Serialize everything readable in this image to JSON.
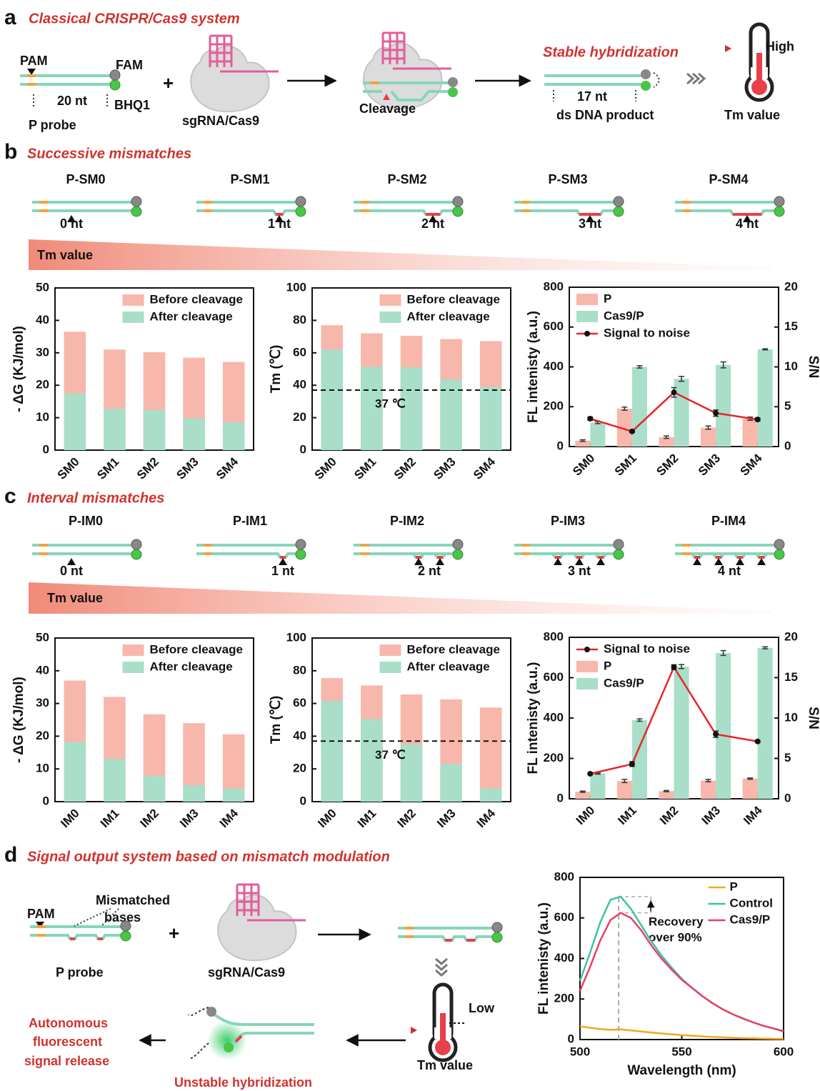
{
  "panel_a": {
    "letter": "a",
    "title": "Classical CRISPR/Cas9 system",
    "pam": "PAM",
    "fam": "FAM",
    "length": "20 nt",
    "quencher": "BHQ1",
    "probe": "P probe",
    "plus": "+",
    "complex": "sgRNA/Cas9",
    "cleavage": "Cleavage",
    "hybridization": "Stable hybridization",
    "product_length": "17 nt",
    "product": "ds DNA product",
    "level": "High",
    "thermometer": "Tm value"
  },
  "panel_b": {
    "letter": "b",
    "title": "Successive mismatches",
    "gradient": "Tm value",
    "probes": [
      {
        "name": "P-SM0",
        "mismatch": "0 nt"
      },
      {
        "name": "P-SM1",
        "mismatch": "1 nt"
      },
      {
        "name": "P-SM2",
        "mismatch": "2 nt"
      },
      {
        "name": "P-SM3",
        "mismatch": "3 nt"
      },
      {
        "name": "P-SM4",
        "mismatch": "4 nt"
      }
    ]
  },
  "panel_c": {
    "letter": "c",
    "title": "Interval mismatches",
    "gradient": "Tm value",
    "probes": [
      {
        "name": "P-IM0",
        "mismatch": "0 nt"
      },
      {
        "name": "P-IM1",
        "mismatch": "1 nt"
      },
      {
        "name": "P-IM2",
        "mismatch": "2 nt"
      },
      {
        "name": "P-IM3",
        "mismatch": "3 nt"
      },
      {
        "name": "P-IM4",
        "mismatch": "4 nt"
      }
    ]
  },
  "panel_d": {
    "letter": "d",
    "title": "Signal output system based on mismatch modulation",
    "pam": "PAM",
    "mismatch": [
      "Mismatched",
      "bases"
    ],
    "probe": "P probe",
    "plus": "+",
    "complex": "sgRNA/Cas9",
    "level": "Low",
    "thermometer": "Tm value",
    "release": [
      "Autonomous",
      "fluorescent",
      "signal release"
    ],
    "hybridization": "Unstable hybridization"
  },
  "chart_data": [
    {
      "type": "bar",
      "barmode": "overlay",
      "ylabel": "- ΔG (KJ/mol)",
      "categories": [
        "SM0",
        "SM1",
        "SM2",
        "SM3",
        "SM4"
      ],
      "series": [
        {
          "name": "Before cleavage",
          "color": "#f7b7ab",
          "values": [
            36.5,
            31,
            30.2,
            28.5,
            27.2
          ]
        },
        {
          "name": "After cleavage",
          "color": "#a9dfc9",
          "values": [
            17.5,
            12.7,
            12.3,
            9.8,
            8.6
          ]
        }
      ],
      "ylim": [
        0,
        50
      ],
      "yticks": [
        0,
        10,
        20,
        30,
        40,
        50
      ],
      "legend": "upper right"
    },
    {
      "type": "bar",
      "barmode": "overlay",
      "ylabel": "Tm (℃)",
      "categories": [
        "SM0",
        "SM1",
        "SM2",
        "SM3",
        "SM4"
      ],
      "series": [
        {
          "name": "Before cleavage",
          "color": "#f7b7ab",
          "values": [
            77,
            72,
            70.5,
            68.5,
            67.2
          ]
        },
        {
          "name": "After cleavage",
          "color": "#a9dfc9",
          "values": [
            62,
            51.5,
            51,
            43.5,
            39
          ]
        }
      ],
      "reference_line": {
        "value": 37,
        "label": "37 ℃"
      },
      "ylim": [
        0,
        100
      ],
      "yticks": [
        0,
        20,
        40,
        60,
        80,
        100
      ],
      "legend": "upper right"
    },
    {
      "type": "bar_line",
      "ylabel": "FL intenisty (a.u.)",
      "y2label": "S/N",
      "categories": [
        "SM0",
        "SM1",
        "SM2",
        "SM3",
        "SM4"
      ],
      "series": [
        {
          "name": "P",
          "color": "#f7b7ab",
          "values": [
            30,
            190,
            47,
            95,
            140
          ],
          "errors": [
            4,
            8,
            6,
            8,
            8
          ]
        },
        {
          "name": "Cas9/P",
          "color": "#a9dfc9",
          "values": [
            120,
            400,
            340,
            410,
            488
          ],
          "errors": [
            5,
            6,
            12,
            15,
            3
          ]
        },
        {
          "name": "Signal to noise",
          "type": "line",
          "axis": "y2",
          "color": "#e8262b",
          "marker_color": "#111111",
          "values": [
            3.5,
            1.9,
            6.8,
            4.2,
            3.4
          ],
          "errors": [
            0.2,
            0.1,
            0.6,
            0.4,
            0.2
          ]
        }
      ],
      "ylim": [
        0,
        800
      ],
      "yticks": [
        0,
        200,
        400,
        600,
        800
      ],
      "y2lim": [
        0,
        20
      ],
      "y2ticks": [
        0,
        5,
        10,
        15,
        20
      ],
      "legend": "upper left"
    },
    {
      "type": "bar",
      "barmode": "overlay",
      "ylabel": "- ΔG (KJ/mol)",
      "categories": [
        "IM0",
        "IM1",
        "IM2",
        "IM3",
        "IM4"
      ],
      "series": [
        {
          "name": "Before cleavage",
          "color": "#f7b7ab",
          "values": [
            37,
            32,
            26.7,
            24,
            20.6
          ]
        },
        {
          "name": "After cleavage",
          "color": "#a9dfc9",
          "values": [
            18.2,
            13,
            7.8,
            5,
            4
          ]
        }
      ],
      "ylim": [
        0,
        50
      ],
      "yticks": [
        0,
        10,
        20,
        30,
        40,
        50
      ],
      "legend": "upper right"
    },
    {
      "type": "bar",
      "barmode": "overlay",
      "ylabel": "Tm (℃)",
      "categories": [
        "IM0",
        "IM1",
        "IM2",
        "IM3",
        "IM4"
      ],
      "series": [
        {
          "name": "Before cleavage",
          "color": "#f7b7ab",
          "values": [
            75.5,
            71,
            65.5,
            62.5,
            57.5
          ]
        },
        {
          "name": "After cleavage",
          "color": "#a9dfc9",
          "values": [
            61.5,
            50.5,
            35,
            23,
            8
          ]
        }
      ],
      "reference_line": {
        "value": 37,
        "label": "37 ℃"
      },
      "ylim": [
        0,
        100
      ],
      "yticks": [
        0,
        20,
        40,
        60,
        80,
        100
      ],
      "legend": "upper right"
    },
    {
      "type": "bar_line",
      "ylabel": "FL intenisty (a.u.)",
      "y2label": "S/N",
      "categories": [
        "IM0",
        "IM1",
        "IM2",
        "IM3",
        "IM4"
      ],
      "series": [
        {
          "name": "Signal to noise",
          "type": "line",
          "axis": "y2",
          "color": "#e8262b",
          "marker_color": "#111111",
          "values": [
            3.1,
            4.3,
            16.3,
            8.0,
            7.1
          ],
          "errors": [
            0.1,
            0.3,
            0.3,
            0.4,
            0.1
          ]
        },
        {
          "name": "P",
          "color": "#f7b7ab",
          "values": [
            35,
            88,
            38,
            90,
            100
          ],
          "errors": [
            3,
            8,
            3,
            6,
            3
          ]
        },
        {
          "name": "Cas9/P",
          "color": "#a9dfc9",
          "values": [
            125,
            390,
            655,
            722,
            748
          ],
          "errors": [
            3,
            6,
            10,
            12,
            5
          ]
        }
      ],
      "ylim": [
        0,
        800
      ],
      "yticks": [
        0,
        200,
        400,
        600,
        800
      ],
      "y2lim": [
        0,
        20
      ],
      "y2ticks": [
        0,
        5,
        10,
        15,
        20
      ],
      "legend": "upper left"
    },
    {
      "type": "line",
      "xlabel": "Wavelength (nm)",
      "ylabel": "FL intenisty (a.u.)",
      "x": [
        500,
        505,
        510,
        515,
        520,
        525,
        530,
        535,
        540,
        545,
        550,
        555,
        560,
        565,
        570,
        575,
        580,
        585,
        590,
        595,
        600
      ],
      "series": [
        {
          "name": "P",
          "color": "#f5a623",
          "values": [
            65,
            58,
            52,
            48,
            50,
            45,
            40,
            35,
            30,
            26,
            22,
            19,
            16,
            13,
            11,
            9,
            7,
            6,
            5,
            4,
            3
          ]
        },
        {
          "name": "Control",
          "color": "#3cc3a5",
          "values": [
            290,
            430,
            580,
            690,
            705,
            645,
            565,
            485,
            415,
            355,
            300,
            255,
            215,
            180,
            150,
            125,
            105,
            85,
            68,
            55,
            42
          ]
        },
        {
          "name": "Cas9/P",
          "color": "#ea3f63",
          "values": [
            240,
            360,
            490,
            590,
            625,
            600,
            540,
            465,
            400,
            345,
            295,
            255,
            215,
            180,
            150,
            125,
            103,
            85,
            68,
            55,
            40
          ]
        }
      ],
      "reference_x": 519,
      "annotation": [
        "Recovery",
        "over 90%"
      ],
      "xlim": [
        500,
        600
      ],
      "xticks": [
        500,
        550,
        600
      ],
      "ylim": [
        0,
        800
      ],
      "yticks": [
        0,
        200,
        400,
        600,
        800
      ],
      "legend": "upper right"
    }
  ]
}
